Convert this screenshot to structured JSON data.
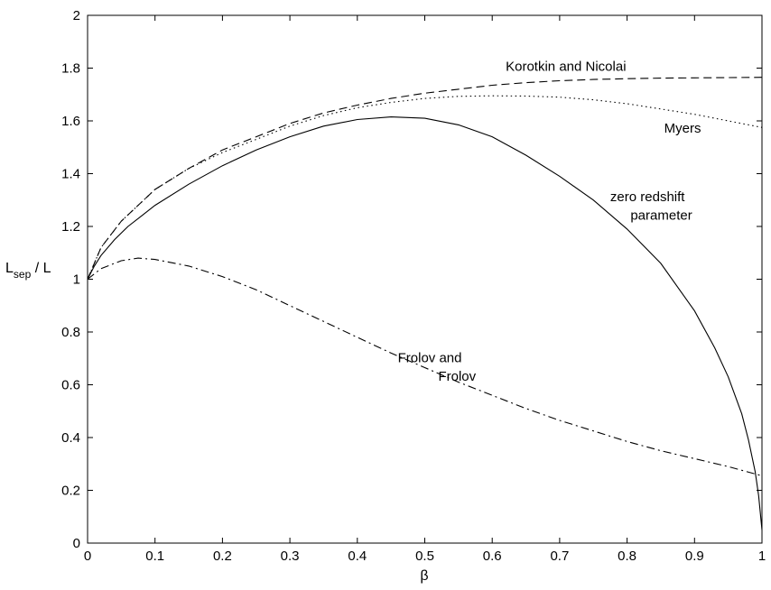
{
  "chart_data": {
    "type": "line",
    "xlabel": "β",
    "ylabel": {
      "main": "L",
      "sub": "sep",
      "tail": " / L"
    },
    "xlim": [
      0,
      1
    ],
    "ylim": [
      0,
      2
    ],
    "xticks": [
      "0",
      "0.1",
      "0.2",
      "0.3",
      "0.4",
      "0.5",
      "0.6",
      "0.7",
      "0.8",
      "0.9",
      "1"
    ],
    "yticks": [
      "0",
      "0.2",
      "0.4",
      "0.6",
      "0.8",
      "1",
      "1.2",
      "1.4",
      "1.6",
      "1.8",
      "2"
    ],
    "grid": false,
    "legend": "none",
    "series": [
      {
        "name": "Korotkin and Nicolai",
        "style": "dashed",
        "x": [
          0,
          0.02,
          0.05,
          0.1,
          0.15,
          0.2,
          0.25,
          0.3,
          0.35,
          0.4,
          0.45,
          0.5,
          0.55,
          0.6,
          0.65,
          0.7,
          0.75,
          0.8,
          0.85,
          0.9,
          0.95,
          1.0
        ],
        "y": [
          1.0,
          1.12,
          1.22,
          1.34,
          1.42,
          1.49,
          1.54,
          1.59,
          1.63,
          1.66,
          1.685,
          1.705,
          1.72,
          1.735,
          1.745,
          1.752,
          1.757,
          1.76,
          1.762,
          1.763,
          1.764,
          1.765
        ]
      },
      {
        "name": "Myers",
        "style": "dotted",
        "x": [
          0,
          0.02,
          0.05,
          0.1,
          0.15,
          0.2,
          0.25,
          0.3,
          0.35,
          0.4,
          0.45,
          0.5,
          0.55,
          0.6,
          0.65,
          0.7,
          0.75,
          0.8,
          0.85,
          0.9,
          0.95,
          1.0
        ],
        "y": [
          1.0,
          1.12,
          1.22,
          1.34,
          1.42,
          1.48,
          1.53,
          1.58,
          1.62,
          1.65,
          1.67,
          1.685,
          1.693,
          1.695,
          1.694,
          1.69,
          1.68,
          1.665,
          1.645,
          1.625,
          1.6,
          1.575
        ]
      },
      {
        "name": "zero redshift parameter",
        "style": "solid",
        "x": [
          0,
          0.01,
          0.02,
          0.04,
          0.06,
          0.08,
          0.1,
          0.15,
          0.2,
          0.25,
          0.3,
          0.35,
          0.4,
          0.45,
          0.5,
          0.55,
          0.6,
          0.65,
          0.7,
          0.75,
          0.8,
          0.85,
          0.9,
          0.93,
          0.95,
          0.97,
          0.98,
          0.99,
          0.995,
          1.0
        ],
        "y": [
          1.0,
          1.05,
          1.09,
          1.15,
          1.2,
          1.24,
          1.28,
          1.36,
          1.43,
          1.49,
          1.54,
          1.58,
          1.605,
          1.615,
          1.61,
          1.585,
          1.54,
          1.47,
          1.39,
          1.3,
          1.19,
          1.06,
          0.88,
          0.74,
          0.63,
          0.49,
          0.39,
          0.27,
          0.18,
          0.05
        ]
      },
      {
        "name": "Frolov and Frolov",
        "style": "dashdot",
        "x": [
          0,
          0.02,
          0.05,
          0.075,
          0.1,
          0.15,
          0.2,
          0.25,
          0.3,
          0.35,
          0.4,
          0.45,
          0.5,
          0.55,
          0.6,
          0.65,
          0.7,
          0.75,
          0.8,
          0.85,
          0.9,
          0.95,
          1.0
        ],
        "y": [
          1.0,
          1.04,
          1.07,
          1.08,
          1.075,
          1.05,
          1.01,
          0.96,
          0.9,
          0.84,
          0.78,
          0.72,
          0.665,
          0.61,
          0.56,
          0.51,
          0.465,
          0.425,
          0.385,
          0.35,
          0.32,
          0.29,
          0.255
        ]
      }
    ],
    "annotations": [
      {
        "text": "Korotkin and Nicolai",
        "x": 0.62,
        "y": 1.79
      },
      {
        "text": "Myers",
        "x": 0.855,
        "y": 1.555
      },
      {
        "text": "zero redshift",
        "x": 0.775,
        "y": 1.295
      },
      {
        "text": "parameter",
        "x": 0.805,
        "y": 1.225
      },
      {
        "text": "Frolov and",
        "x": 0.46,
        "y": 0.685
      },
      {
        "text": "Frolov",
        "x": 0.52,
        "y": 0.615
      }
    ]
  }
}
